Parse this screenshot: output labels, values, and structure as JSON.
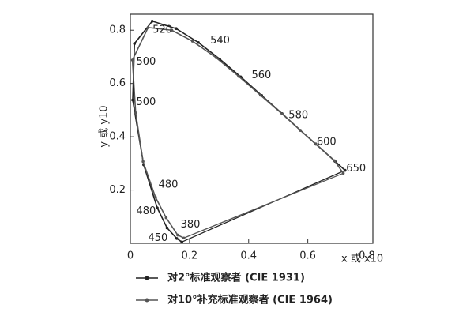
{
  "chart_data": {
    "type": "line",
    "xlabel": "x 或 x10",
    "ylabel": "y 或 y10",
    "xlim": [
      0,
      0.82
    ],
    "ylim": [
      0,
      0.86
    ],
    "xticks": [
      0,
      0.2,
      0.4,
      0.6,
      0.8
    ],
    "yticks": [
      0.2,
      0.4,
      0.6,
      0.8
    ],
    "series": [
      {
        "name": "对2°标准观察者 (CIE 1931)",
        "color": "#222222",
        "x": [
          0.174,
          0.157,
          0.124,
          0.091,
          0.045,
          0.008,
          0.014,
          0.074,
          0.155,
          0.23,
          0.302,
          0.373,
          0.444,
          0.513,
          0.575,
          0.627,
          0.692,
          0.726
        ],
        "values": [
          0.005,
          0.018,
          0.058,
          0.133,
          0.295,
          0.538,
          0.75,
          0.834,
          0.806,
          0.754,
          0.692,
          0.625,
          0.555,
          0.487,
          0.424,
          0.373,
          0.308,
          0.274
        ]
      },
      {
        "name": "对10°补充标准观察者 (CIE 1964)",
        "color": "#555555",
        "x": [
          0.181,
          0.16,
          0.121,
          0.085,
          0.043,
          0.018,
          0.007,
          0.06,
          0.14,
          0.21,
          0.29,
          0.366,
          0.44,
          0.513,
          0.575,
          0.627,
          0.69,
          0.72
        ],
        "values": [
          0.02,
          0.031,
          0.096,
          0.173,
          0.307,
          0.49,
          0.688,
          0.81,
          0.8,
          0.759,
          0.697,
          0.627,
          0.556,
          0.486,
          0.424,
          0.372,
          0.31,
          0.263
        ]
      }
    ],
    "annotations": [
      {
        "text": "520",
        "x": 0.075,
        "y": 0.8
      },
      {
        "text": "540",
        "x": 0.27,
        "y": 0.76
      },
      {
        "text": "560",
        "x": 0.41,
        "y": 0.63
      },
      {
        "text": "580",
        "x": 0.535,
        "y": 0.48
      },
      {
        "text": "600",
        "x": 0.63,
        "y": 0.38
      },
      {
        "text": "650",
        "x": 0.73,
        "y": 0.28
      },
      {
        "text": "500",
        "x": 0.02,
        "y": 0.68
      },
      {
        "text": "500",
        "x": 0.02,
        "y": 0.53
      },
      {
        "text": "480",
        "x": 0.095,
        "y": 0.22
      },
      {
        "text": "480",
        "x": 0.02,
        "y": 0.12
      },
      {
        "text": "380",
        "x": 0.17,
        "y": 0.07
      },
      {
        "text": "450",
        "x": 0.06,
        "y": 0.02
      }
    ]
  }
}
